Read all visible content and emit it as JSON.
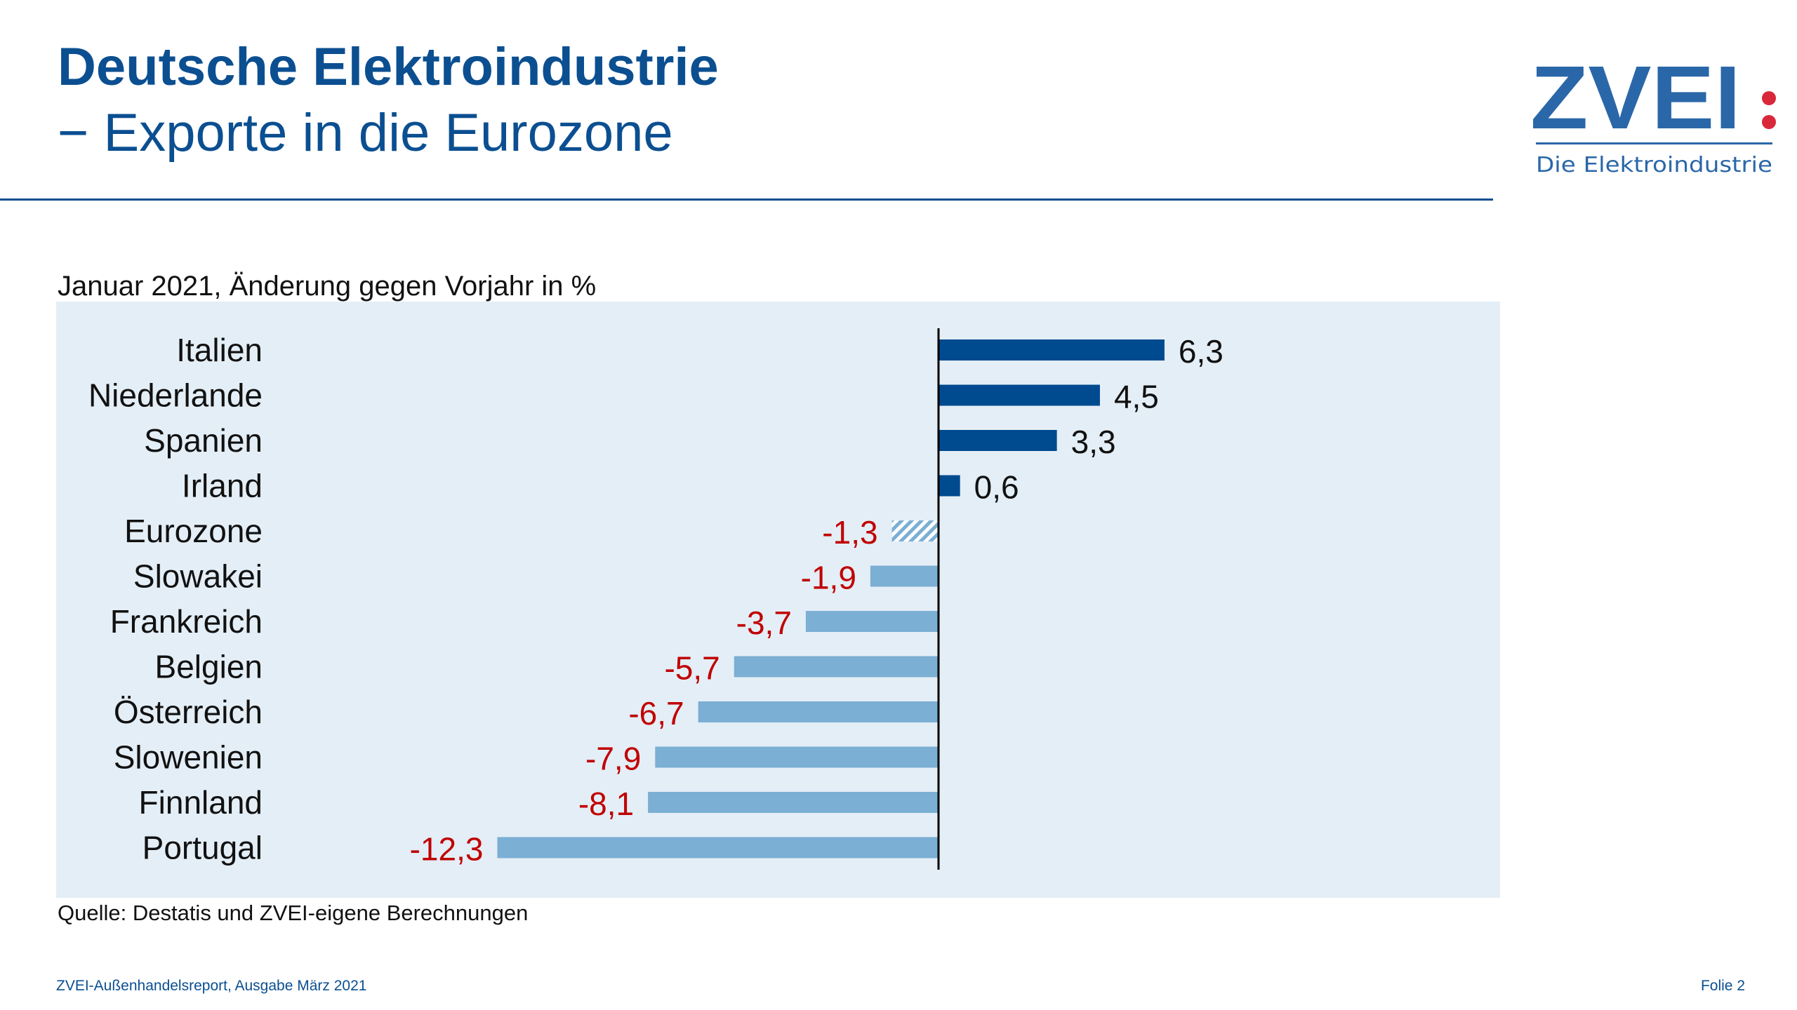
{
  "header": {
    "title": "Deutsche Elektroindustrie",
    "subtitle": "− Exporte in die Eurozone"
  },
  "logo": {
    "text": "ZVEI",
    "tagline": "Die Elektroindustrie",
    "colors": {
      "blue": "#2a67a8",
      "red": "#d9283a"
    }
  },
  "chart_data": {
    "type": "bar",
    "orientation": "horizontal",
    "subtitle": "Januar 2021, Änderung gegen Vorjahr in %",
    "categories": [
      "Italien",
      "Niederlande",
      "Spanien",
      "Irland",
      "Eurozone",
      "Slowakei",
      "Frankreich",
      "Belgien",
      "Österreich",
      "Slowenien",
      "Finnland",
      "Portugal"
    ],
    "values": [
      6.3,
      4.5,
      3.3,
      0.6,
      -1.3,
      -1.9,
      -3.7,
      -5.7,
      -6.7,
      -7.9,
      -8.1,
      -12.3
    ],
    "value_labels": [
      "6,3",
      "4,5",
      "3,3",
      "0,6",
      "-1,3",
      "-1,9",
      "-3,7",
      "-5,7",
      "-6,7",
      "-7,9",
      "-8,1",
      "-12,3"
    ],
    "highlight": "Eurozone",
    "xlim": [
      -12.3,
      6.3
    ],
    "grid": false,
    "colors": {
      "positive": "#004a8f",
      "negative": "#7bafd4",
      "negative_label": "#c00000",
      "positive_label": "#111111",
      "background": "#e4eef6"
    }
  },
  "source": "Quelle: Destatis und ZVEI-eigene Berechnungen",
  "footer": {
    "left": "ZVEI-Außenhandelsreport, Ausgabe März 2021",
    "right": "Folie 2"
  }
}
